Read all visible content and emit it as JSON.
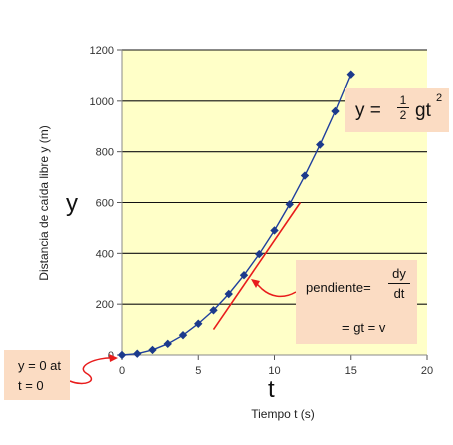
{
  "chart_data": {
    "type": "line",
    "title": "",
    "xlabel": "Tiempo t (s)",
    "ylabel": "Distancia de caída libre  y (m)",
    "x_axis_symbol": "t",
    "y_axis_symbol": "y",
    "xlim": [
      0,
      20
    ],
    "ylim": [
      0,
      1200
    ],
    "xticks": [
      0,
      5,
      10,
      15,
      20
    ],
    "yticks": [
      0,
      200,
      400,
      600,
      800,
      1000,
      1200
    ],
    "grid": "horizontal",
    "plot_background": "#ffffc8",
    "series": [
      {
        "color": "#1f3f9e",
        "marker": "diamond",
        "x": [
          0,
          1,
          2,
          3,
          4,
          5,
          6,
          7,
          8,
          9,
          10,
          11,
          12,
          13,
          14,
          15
        ],
        "y": [
          0,
          5,
          20,
          44,
          78,
          123,
          176,
          240,
          314,
          397,
          490,
          593,
          706,
          828,
          960,
          1103
        ]
      }
    ],
    "tangent": {
      "color": "#e81c1c",
      "x": [
        6.0,
        11.7
      ],
      "y": [
        100,
        600
      ]
    },
    "annotations": {
      "equation": {
        "lhs": "y =",
        "frac_num": "1",
        "frac_den": "2",
        "rhs": "gt",
        "exponent": "2"
      },
      "slope": {
        "label": "pendiente=",
        "frac_num": "dy",
        "frac_den": "dt",
        "result": "= gt = v"
      },
      "initial": {
        "line1": "y = 0 at",
        "line2": "t = 0"
      }
    },
    "box_color": "#fbdcc3",
    "arrow_color": "#e81c1c"
  }
}
